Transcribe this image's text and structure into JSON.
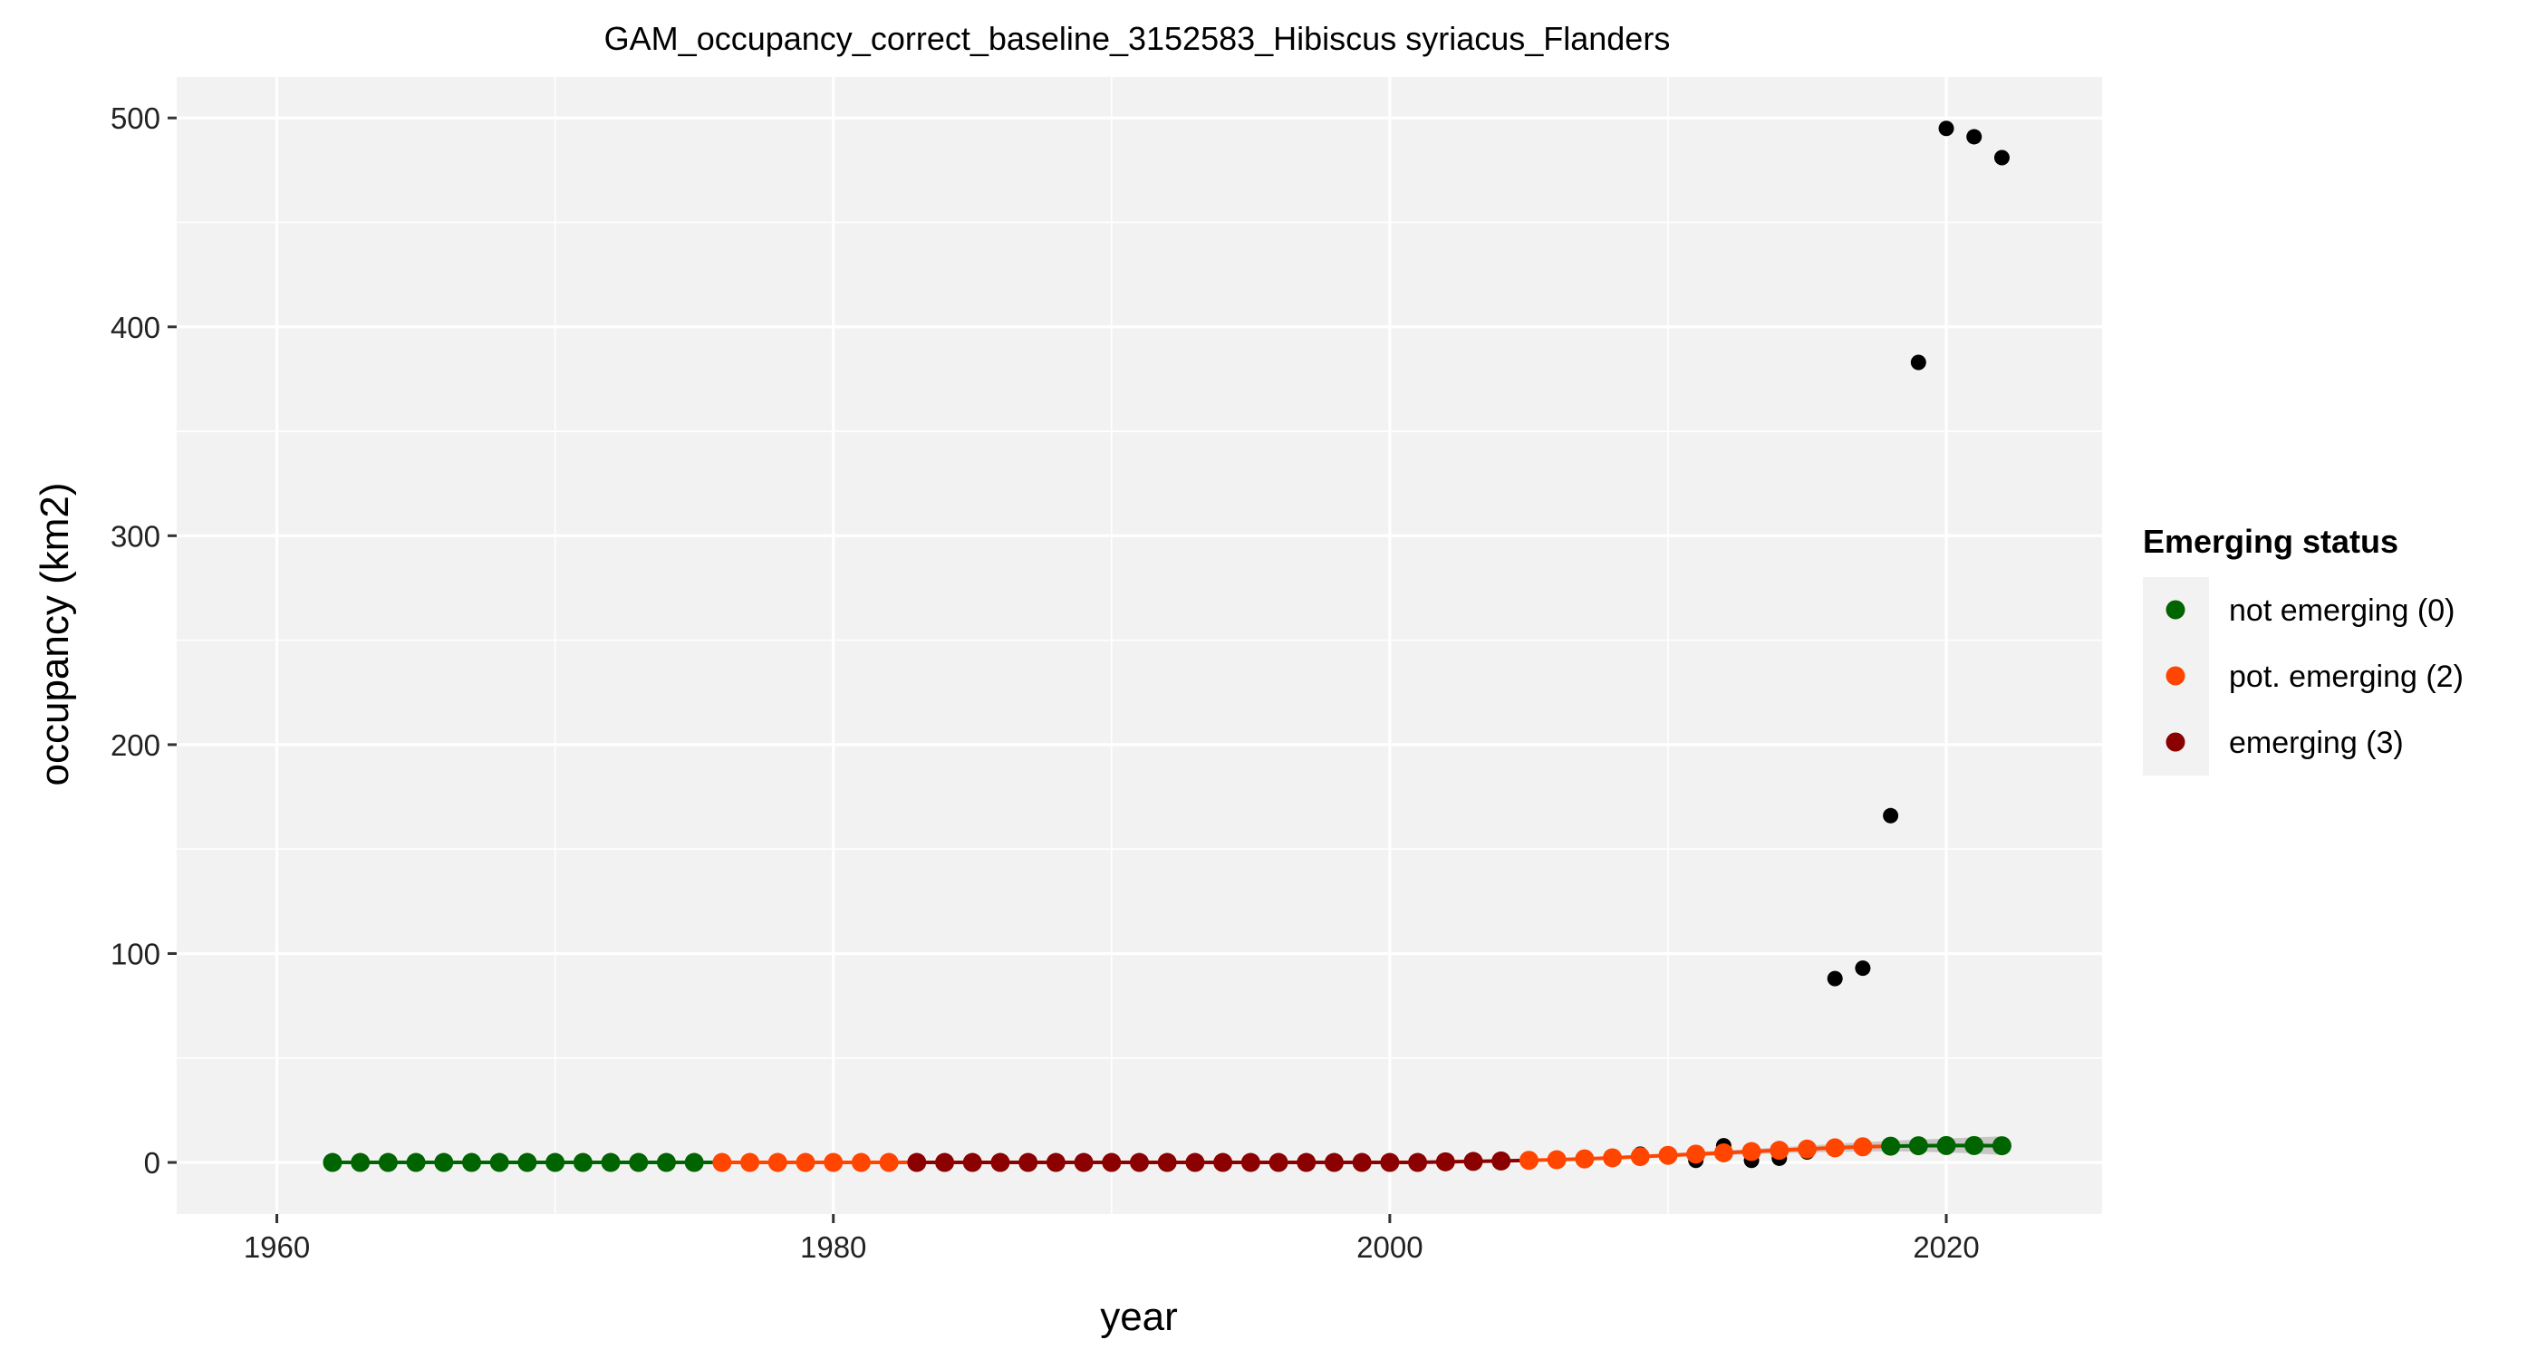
{
  "chart_data": {
    "type": "scatter",
    "title": "GAM_occupancy_correct_baseline_3152583_Hibiscus syriacus_Flanders",
    "xlabel": "year",
    "ylabel": "occupancy (km2)",
    "xlim": [
      1956.4,
      2025.6
    ],
    "ylim": [
      -24.7,
      519.6
    ],
    "x_ticks": [
      1960,
      1980,
      2000,
      2020
    ],
    "y_ticks": [
      0,
      100,
      200,
      300,
      400,
      500
    ],
    "grid": true,
    "legend": {
      "title": "Emerging status",
      "placement": "right",
      "entries": [
        {
          "label": "not emerging (0)",
          "color": "#006400"
        },
        {
          "label": "pot. emerging (2)",
          "color": "#FF4500"
        },
        {
          "label": "emerging (3)",
          "color": "#8B0000"
        }
      ]
    },
    "colors": {
      "panel": "#F2F2F2",
      "grid": "#FFFFFF",
      "observed": "#000000",
      "ribbon": "#BEBEBE",
      "not_emerging": "#006400",
      "pot_emerging": "#FF4500",
      "emerging": "#8B0000"
    },
    "observed": {
      "x": [
        2006,
        2009,
        2011,
        2012,
        2013,
        2014,
        2015,
        2016,
        2017,
        2018,
        2019,
        2020,
        2021,
        2022
      ],
      "y": [
        1,
        4,
        1,
        8,
        1,
        2,
        5,
        88,
        93,
        166,
        383,
        495,
        491,
        481
      ]
    },
    "gam_fit": {
      "x": [
        1962,
        1963,
        1964,
        1965,
        1966,
        1967,
        1968,
        1969,
        1970,
        1971,
        1972,
        1973,
        1974,
        1975,
        1976,
        1977,
        1978,
        1979,
        1980,
        1981,
        1982,
        1983,
        1984,
        1985,
        1986,
        1987,
        1988,
        1989,
        1990,
        1991,
        1992,
        1993,
        1994,
        1995,
        1996,
        1997,
        1998,
        1999,
        2000,
        2001,
        2002,
        2003,
        2004,
        2005,
        2006,
        2007,
        2008,
        2009,
        2010,
        2011,
        2012,
        2013,
        2014,
        2015,
        2016,
        2017,
        2018,
        2019,
        2020,
        2021,
        2022
      ],
      "y": [
        0,
        0,
        0,
        0,
        0,
        0,
        0,
        0,
        0,
        0,
        0,
        0,
        0,
        0,
        0,
        0,
        0,
        0,
        0,
        0,
        0,
        0,
        0,
        0,
        0,
        0,
        0,
        0,
        0,
        0,
        0,
        0,
        0,
        0,
        0,
        0,
        0,
        0,
        0,
        0,
        0.3,
        0.5,
        0.7,
        1.0,
        1.3,
        1.7,
        2.2,
        2.8,
        3.4,
        4.0,
        4.6,
        5.2,
        5.8,
        6.4,
        7.0,
        7.5,
        7.8,
        8.0,
        8.1,
        8.1,
        8.0
      ],
      "status": [
        0,
        0,
        0,
        0,
        0,
        0,
        0,
        0,
        0,
        0,
        0,
        0,
        0,
        0,
        2,
        2,
        2,
        2,
        2,
        2,
        2,
        3,
        3,
        3,
        3,
        3,
        3,
        3,
        3,
        3,
        3,
        3,
        3,
        3,
        3,
        3,
        3,
        3,
        3,
        3,
        3,
        3,
        3,
        2,
        2,
        2,
        2,
        2,
        2,
        2,
        2,
        2,
        2,
        2,
        2,
        2,
        0,
        0,
        0,
        0,
        0
      ],
      "lower": [
        0,
        0,
        0,
        0,
        0,
        0,
        0,
        0,
        0,
        0,
        0,
        0,
        0,
        0,
        0,
        0,
        0,
        0,
        0,
        0,
        0,
        0,
        0,
        0,
        0,
        0,
        0,
        0,
        0,
        0,
        0,
        0,
        0,
        0,
        0,
        0,
        0,
        0,
        0,
        0,
        0,
        0.1,
        0.3,
        0.5,
        0.8,
        1.1,
        1.5,
        2.0,
        2.5,
        3.0,
        3.5,
        4.0,
        4.4,
        4.8,
        5.1,
        5.3,
        5.3,
        5.1,
        4.8,
        4.3,
        3.6
      ],
      "upper": [
        0.3,
        0.3,
        0.3,
        0.3,
        0.3,
        0.3,
        0.3,
        0.3,
        0.3,
        0.3,
        0.3,
        0.3,
        0.3,
        0.3,
        0.3,
        0.3,
        0.3,
        0.3,
        0.3,
        0.3,
        0.3,
        0.3,
        0.3,
        0.3,
        0.3,
        0.3,
        0.3,
        0.3,
        0.3,
        0.3,
        0.3,
        0.3,
        0.3,
        0.3,
        0.3,
        0.3,
        0.3,
        0.3,
        0.3,
        0.4,
        0.6,
        0.9,
        1.1,
        1.5,
        1.8,
        2.3,
        2.9,
        3.6,
        4.3,
        5.0,
        5.7,
        6.4,
        7.2,
        8.0,
        8.9,
        9.7,
        10.3,
        10.9,
        11.4,
        12.0,
        12.5
      ]
    }
  }
}
